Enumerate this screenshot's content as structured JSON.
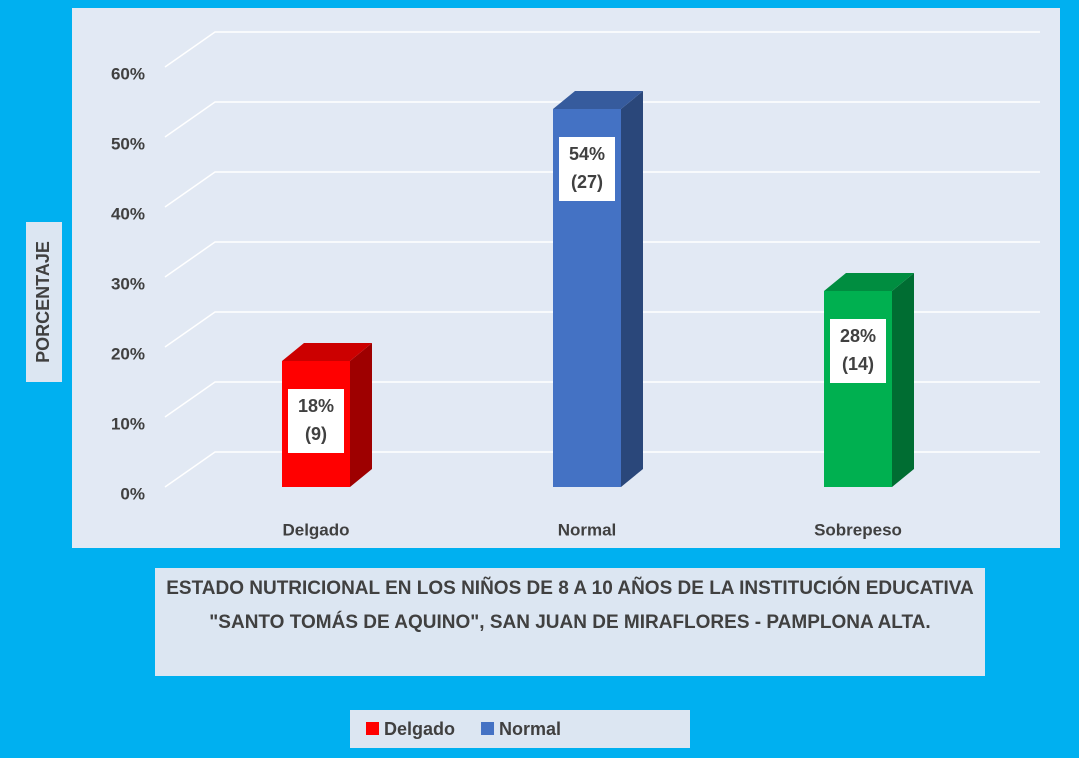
{
  "chart_data": {
    "type": "bar3d",
    "title": "ESTADO NUTRICIONAL EN LOS NIÑOS DE 8 A 10 AÑOS DE LA INSTITUCIÓN EDUCATIVA \"SANTO TOMÁS DE AQUINO\", SAN JUAN DE MIRAFLORES - PAMPLONA ALTA.",
    "y_label": "PORCENTAJE",
    "categories": [
      "Delgado",
      "Normal",
      "Sobrepeso"
    ],
    "values": [
      18,
      54,
      28
    ],
    "value_labels": [
      "18%",
      "54%",
      "28%"
    ],
    "count_labels": [
      "(9)",
      "(27)",
      "(14)"
    ],
    "colors": [
      "#ff0000",
      "#4472c4",
      "#00b050"
    ],
    "legend": [
      {
        "name": "Delgado",
        "color": "#ff0000"
      },
      {
        "name": "Normal",
        "color": "#4472c4"
      }
    ],
    "ylim": [
      0,
      60
    ],
    "yticks": [
      {
        "value": 0,
        "label": "0%"
      },
      {
        "value": 10,
        "label": "10%"
      },
      {
        "value": 20,
        "label": "20%"
      },
      {
        "value": 30,
        "label": "30%"
      },
      {
        "value": 40,
        "label": "40%"
      },
      {
        "value": 50,
        "label": "50%"
      },
      {
        "value": 60,
        "label": "60%"
      }
    ],
    "grid": true
  }
}
